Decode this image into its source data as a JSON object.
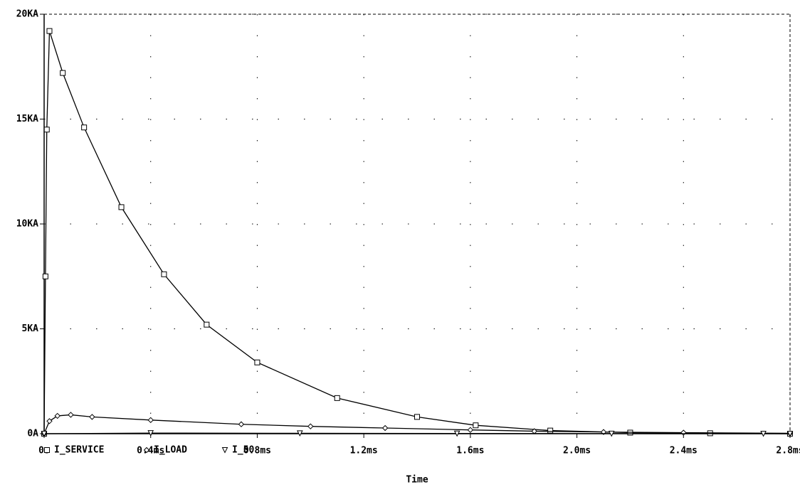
{
  "chart_data": {
    "type": "line",
    "x_label": "Time",
    "xlim": [
      0,
      2.8
    ],
    "xticks": [
      {
        "value": 0,
        "label": "0s"
      },
      {
        "value": 0.4,
        "label": "0.4ms"
      },
      {
        "value": 0.8,
        "label": "0.8ms"
      },
      {
        "value": 1.2,
        "label": "1.2ms"
      },
      {
        "value": 1.6,
        "label": "1.6ms"
      },
      {
        "value": 2.0,
        "label": "2.0ms"
      },
      {
        "value": 2.4,
        "label": "2.4ms"
      },
      {
        "value": 2.8,
        "label": "2.8ms"
      }
    ],
    "ylim": [
      0,
      20000
    ],
    "yticks": [
      {
        "value": 0,
        "label": "0A"
      },
      {
        "value": 5000,
        "label": "5KA"
      },
      {
        "value": 10000,
        "label": "10KA"
      },
      {
        "value": 15000,
        "label": "15KA"
      },
      {
        "value": 20000,
        "label": "20KA"
      }
    ],
    "grid": true,
    "series": [
      {
        "name": "I_SERVICE",
        "color": "#000000",
        "marker": "square",
        "x": [
          0,
          0.005,
          0.01,
          0.02,
          0.07,
          0.15,
          0.29,
          0.45,
          0.61,
          0.8,
          1.1,
          1.4,
          1.62,
          1.9,
          2.2,
          2.5,
          2.8
        ],
        "values": [
          0,
          7500,
          14500,
          19200,
          17200,
          14600,
          10800,
          7600,
          5200,
          3400,
          1700,
          800,
          400,
          150,
          50,
          20,
          0
        ]
      },
      {
        "name": "I_LOAD",
        "color": "#000000",
        "marker": "diamond",
        "x": [
          0,
          0.02,
          0.05,
          0.1,
          0.18,
          0.4,
          0.74,
          1.0,
          1.28,
          1.6,
          1.84,
          2.1,
          2.4,
          2.8
        ],
        "values": [
          0,
          600,
          850,
          900,
          800,
          650,
          450,
          350,
          270,
          180,
          120,
          80,
          50,
          20
        ]
      },
      {
        "name": "I_50",
        "color": "#000000",
        "marker": "triangle",
        "x": [
          0,
          0.4,
          0.96,
          1.55,
          2.13,
          2.7,
          2.8
        ],
        "values": [
          0,
          30,
          20,
          10,
          5,
          0,
          0
        ]
      }
    ]
  }
}
